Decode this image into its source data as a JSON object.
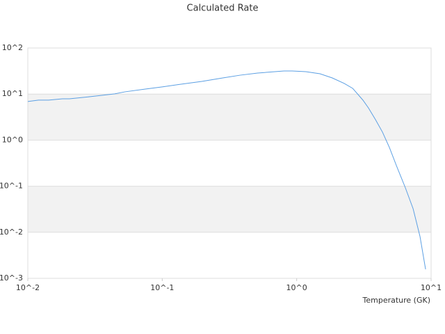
{
  "chart_data": {
    "type": "line",
    "title": "Calculated Rate",
    "x_label": "Temperature (GK)",
    "xscale": "log",
    "yscale": "log",
    "x": [
      0.01,
      0.012,
      0.0143,
      0.0181,
      0.0204,
      0.0292,
      0.0443,
      0.0529,
      0.0757,
      0.1,
      0.138,
      0.197,
      0.282,
      0.379,
      0.512,
      0.804,
      0.926,
      1.17,
      1.49,
      1.84,
      2.26,
      2.61,
      3.11,
      3.42,
      3.86,
      4.35,
      4.9,
      5.52,
      6.44,
      7.35,
      8.27,
      9.1
    ],
    "series": [
      {
        "color": "#5b9fe3",
        "values": [
          6.9,
          7.4,
          7.4,
          7.9,
          7.9,
          8.8,
          10.1,
          11.2,
          12.9,
          14.3,
          16.4,
          18.8,
          22.4,
          25.7,
          28.6,
          31.7,
          31.7,
          30.6,
          27.6,
          22.4,
          17.0,
          13.3,
          7.4,
          5.0,
          2.78,
          1.49,
          0.69,
          0.28,
          0.092,
          0.0324,
          0.0081,
          0.00157
        ]
      }
    ],
    "xlim": [
      0.01,
      10
    ],
    "xticks": [
      {
        "value": 0.01,
        "label": "10^-2"
      },
      {
        "value": 0.1,
        "label": "10^-1"
      },
      {
        "value": 1,
        "label": "10^0"
      },
      {
        "value": 10,
        "label": "10^1"
      }
    ],
    "ylim": [
      0.001,
      100
    ],
    "yticks": [
      {
        "value": 0.001,
        "label": "10^-3"
      },
      {
        "value": 0.01,
        "label": "10^-2"
      },
      {
        "value": 0.1,
        "label": "10^-1"
      },
      {
        "value": 1,
        "label": "10^0"
      },
      {
        "value": 10,
        "label": "10^1"
      },
      {
        "value": 100,
        "label": "10^2"
      }
    ],
    "grid": true
  }
}
